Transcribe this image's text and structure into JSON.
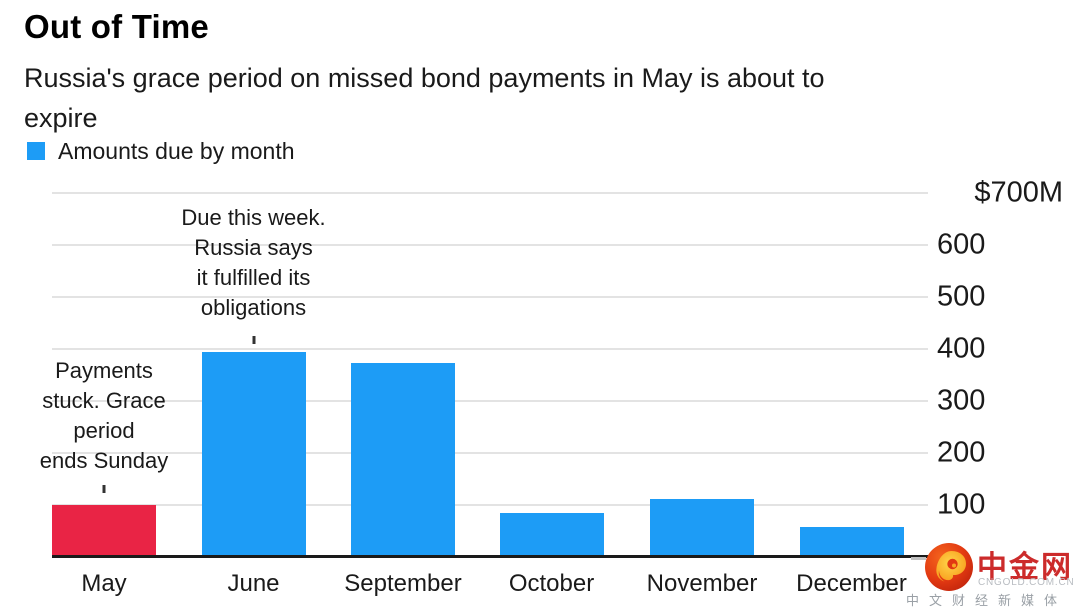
{
  "header": {
    "title": "Out of Time",
    "subtitle": "Russia's grace period on missed bond payments in May is about to\nexpire"
  },
  "legend": {
    "label": "Amounts due by month",
    "swatch_color": "#1d9cf6"
  },
  "chart_data": {
    "type": "bar",
    "title": "Out of Time",
    "subtitle": "Russia's grace period on missed bond payments in May is about to expire",
    "legend": "Amounts due by month",
    "unit": "$M",
    "categories": [
      "May",
      "June",
      "September",
      "October",
      "November",
      "December"
    ],
    "values": [
      100,
      394,
      373,
      85,
      112,
      57
    ],
    "bar_colors": [
      "#e92445",
      "#1d9cf6",
      "#1d9cf6",
      "#1d9cf6",
      "#1d9cf6",
      "#1d9cf6"
    ],
    "ylim": [
      0,
      700
    ],
    "yticks": [
      100,
      200,
      300,
      400,
      500,
      600,
      700
    ],
    "ytick_labels": [
      "100",
      "200",
      "300",
      "400",
      "500",
      "600",
      "$700M"
    ],
    "grid": "horizontal",
    "axis_labels_position": "right",
    "annotations": [
      {
        "text": "Due this week.\nRussia says\nit fulfilled its\nobligations",
        "target": "June"
      },
      {
        "text": "Payments\nstuck. Grace\nperiod\nends Sunday",
        "target": "May"
      }
    ]
  },
  "watermark": {
    "site_name": "中金网",
    "site_url": "CNGOLD.COM.CN",
    "tagline": "中文财经新媒体",
    "logo": "cngold-flame-logo",
    "brand_red": "#cc2b2b"
  },
  "colors": {
    "bar_blue": "#1d9cf6",
    "bar_red": "#e92445",
    "grid": "#e3e3e3",
    "axis": "#1a1a1a"
  }
}
